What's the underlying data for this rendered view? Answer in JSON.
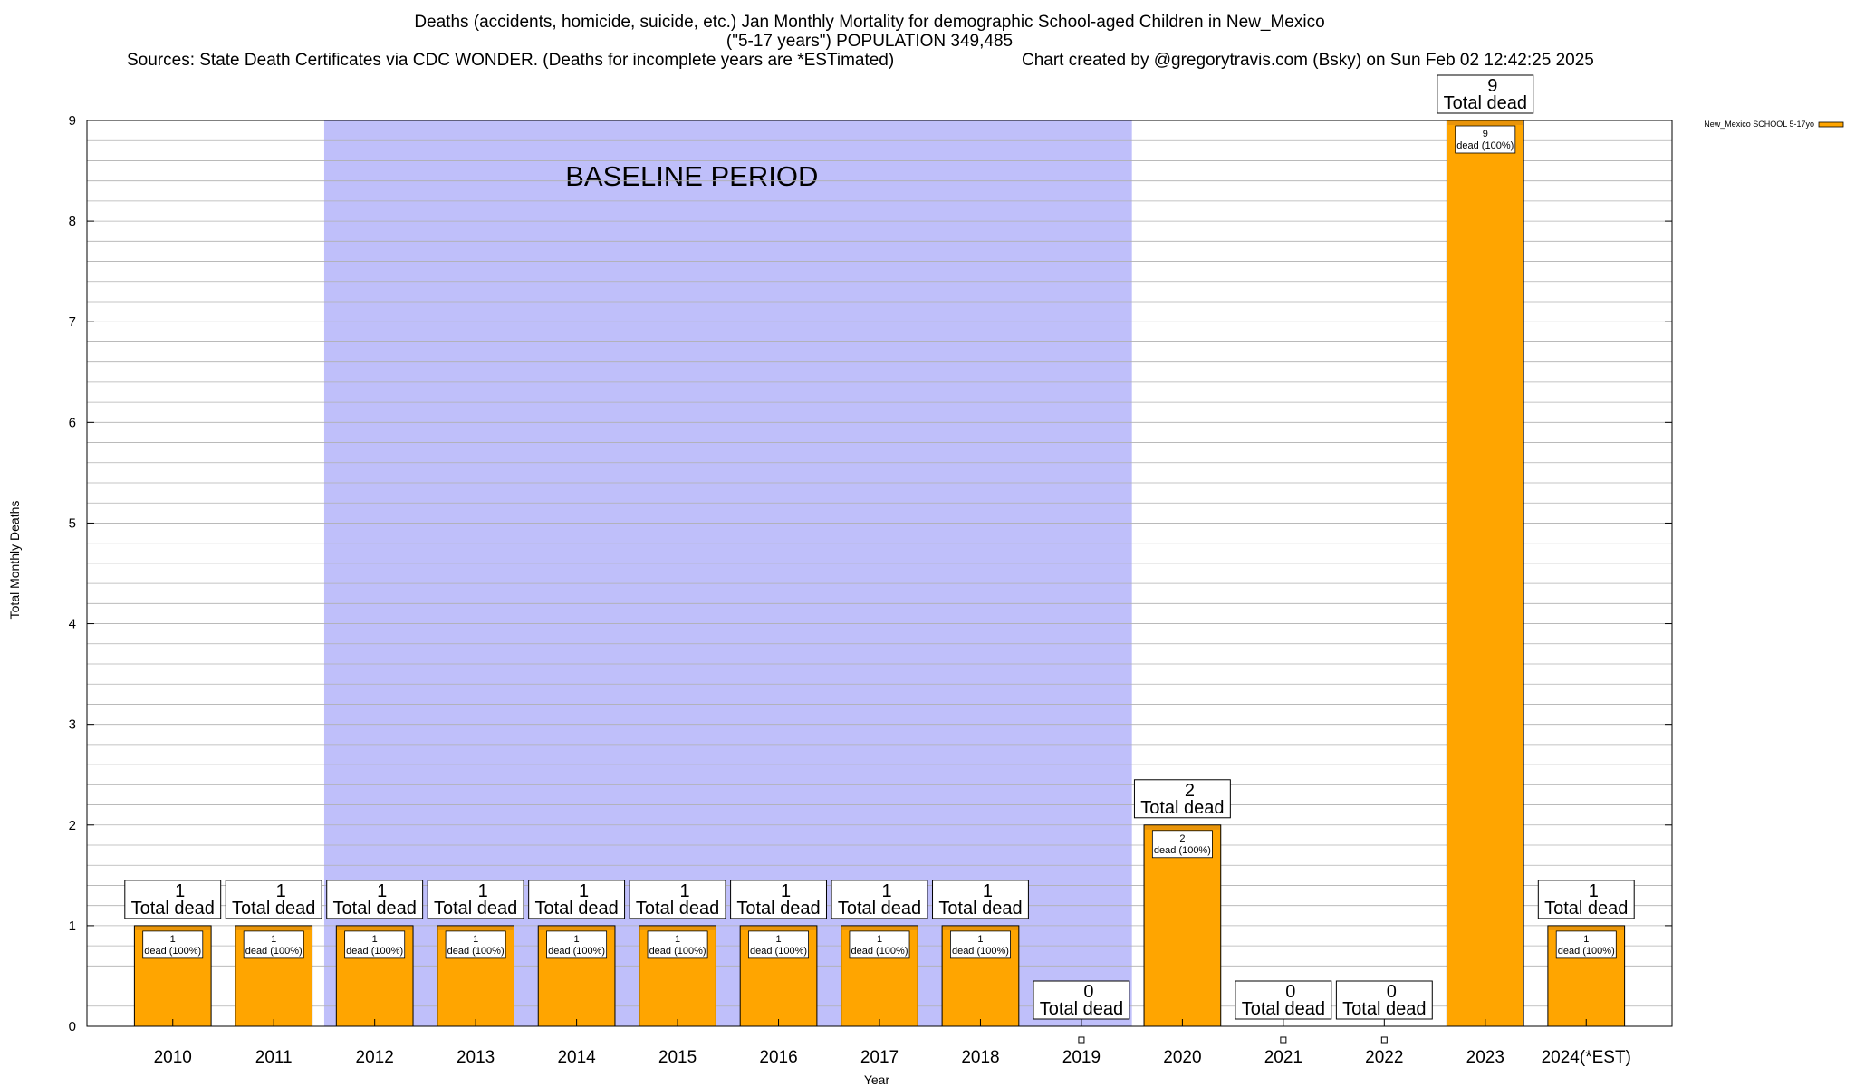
{
  "header": {
    "title_line1": "Deaths (accidents, homicide, suicide, etc.) Jan Monthly Mortality for demographic School-aged Children in New_Mexico",
    "title_line2": "(\"5-17 years\") POPULATION 349,485",
    "sources": "Sources: State Death Certificates via CDC WONDER. (Deaths for incomplete years are *ESTimated)",
    "credit": "Chart created by @gregorytravis.com (Bsky) on Sun Feb 02 12:42:25 2025"
  },
  "colors": {
    "bar": "#FFA500",
    "bar_top": "#E8940A",
    "shade": "#BFBFFA",
    "grid": "#B0B0B0"
  },
  "chart_data": {
    "type": "bar",
    "title": "Deaths (accidents, homicide, suicide, etc.) Jan Monthly Mortality for demographic School-aged Children in New_Mexico",
    "xlabel": "Year",
    "ylabel": "Total Monthly Deaths",
    "ylim": [
      0,
      9
    ],
    "yticks": [
      "0",
      "1",
      "2",
      "3",
      "4",
      "5",
      "6",
      "7",
      "8",
      "9"
    ],
    "grid": true,
    "legend_position": "top-right",
    "categories": [
      "2010",
      "2011",
      "2012",
      "2013",
      "2014",
      "2015",
      "2016",
      "2017",
      "2018",
      "2019",
      "2020",
      "2021",
      "2022",
      "2023",
      "2024(*EST)"
    ],
    "series": [
      {
        "name": "New_Mexico SCHOOL 5-17yo",
        "values": [
          1,
          1,
          1,
          1,
          1,
          1,
          1,
          1,
          1,
          0,
          2,
          0,
          0,
          9,
          1
        ]
      }
    ],
    "total_labels": [
      "1",
      "1",
      "1",
      "1",
      "1",
      "1",
      "1",
      "1",
      "1",
      "0",
      "2",
      "0",
      "0",
      "9",
      "1"
    ],
    "total_suffix": "Total dead",
    "inner_labels": [
      "1",
      "1",
      "1",
      "1",
      "1",
      "1",
      "1",
      "1",
      "1",
      "",
      "2",
      "",
      "",
      "9",
      "1"
    ],
    "inner_suffix": "dead (100%)",
    "shaded_region": {
      "label": "BASELINE PERIOD",
      "from_category": "2012",
      "to_category": "2019"
    }
  }
}
